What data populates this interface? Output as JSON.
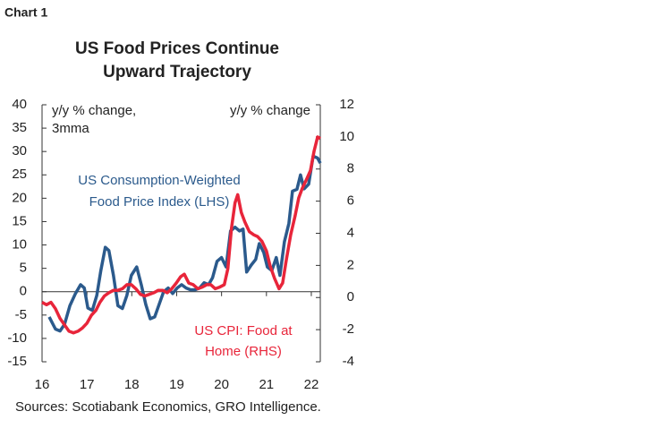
{
  "label": "Chart 1",
  "chart_data": {
    "type": "line",
    "title": [
      "US Food Prices Continue",
      "Upward Trajectory"
    ],
    "y_label": [
      "y/y % change,",
      "3mma"
    ],
    "y2_label": "y/y % change",
    "source": "Sources: Scotiabank Economics, GRO Intelligence.",
    "xlim": [
      16,
      22.2
    ],
    "xticks": [
      16,
      17,
      18,
      19,
      20,
      21,
      22
    ],
    "ylim": [
      -15,
      40
    ],
    "yticks": [
      40,
      35,
      30,
      25,
      20,
      15,
      10,
      5,
      0,
      -5,
      -10,
      -15
    ],
    "y2lim": [
      -4,
      12
    ],
    "y2ticks": [
      12,
      10,
      8,
      6,
      4,
      2,
      0,
      -2,
      -4
    ],
    "series": [
      {
        "name": [
          "US Consumption-Weighted",
          "Food Price Index (LHS)"
        ],
        "color": "#2b5a8c",
        "x": [
          16.16,
          16.3,
          16.4,
          16.5,
          16.62,
          16.74,
          16.86,
          16.94,
          17.02,
          17.12,
          17.22,
          17.31,
          17.41,
          17.49,
          17.59,
          17.69,
          17.79,
          17.89,
          17.99,
          18.11,
          18.21,
          18.31,
          18.41,
          18.51,
          18.61,
          18.71,
          18.81,
          18.91,
          19.01,
          19.11,
          19.21,
          19.31,
          19.41,
          19.51,
          19.61,
          19.71,
          19.8,
          19.9,
          20.0,
          20.1,
          20.2,
          20.3,
          20.4,
          20.48,
          20.56,
          20.66,
          20.76,
          20.84,
          20.94,
          21.02,
          21.12,
          21.22,
          21.3,
          21.4,
          21.5,
          21.58,
          21.68,
          21.76,
          21.84,
          21.94,
          22.04,
          22.14,
          22.2
        ],
        "values": [
          -5.4,
          -8,
          -8.4,
          -7,
          -3,
          -0.5,
          1.5,
          0.8,
          -3.5,
          -4,
          -0.8,
          4.5,
          9.5,
          8.8,
          3.5,
          -3,
          -3.6,
          -0.8,
          3.5,
          5.3,
          1.5,
          -2.7,
          -5.8,
          -5.4,
          -2.7,
          0,
          0.8,
          -0.4,
          0.8,
          1.5,
          0.8,
          0.4,
          0.4,
          0.8,
          1.9,
          1.5,
          3,
          6.5,
          7.3,
          5.3,
          13,
          13.8,
          13,
          13.4,
          4.2,
          5.7,
          6.9,
          10.3,
          8.4,
          5.3,
          4.5,
          7.3,
          3.5,
          10.7,
          14.6,
          21.5,
          21.9,
          25,
          22,
          23,
          29,
          28.6,
          27.5
        ]
      },
      {
        "name": [
          "US CPI: Food at",
          "Home (RHS)"
        ],
        "color": "#e8253a",
        "axis": "y2",
        "x": [
          16.0,
          16.1,
          16.2,
          16.3,
          16.4,
          16.5,
          16.6,
          16.7,
          16.8,
          16.9,
          17.0,
          17.1,
          17.2,
          17.29,
          17.39,
          17.49,
          17.59,
          17.69,
          17.79,
          17.89,
          17.99,
          18.09,
          18.19,
          18.29,
          18.39,
          18.49,
          18.59,
          18.69,
          18.79,
          18.89,
          18.99,
          19.09,
          19.17,
          19.27,
          19.37,
          19.47,
          19.57,
          19.67,
          19.76,
          19.86,
          19.96,
          20.06,
          20.14,
          20.22,
          20.3,
          20.36,
          20.44,
          20.52,
          20.62,
          20.72,
          20.8,
          20.9,
          21.0,
          21.08,
          21.18,
          21.28,
          21.36,
          21.44,
          21.54,
          21.64,
          21.72,
          21.8,
          21.9,
          21.98,
          22.06,
          22.14,
          22.2
        ],
        "values": [
          -0.3,
          -0.45,
          -0.3,
          -0.7,
          -1.3,
          -1.7,
          -2.1,
          -2.2,
          -2.1,
          -1.9,
          -1.6,
          -1.1,
          -0.8,
          -0.3,
          0.1,
          0.3,
          0.45,
          0.45,
          0.55,
          0.8,
          0.8,
          0.55,
          0.2,
          0.1,
          0.2,
          0.3,
          0.45,
          0.45,
          0.3,
          0.55,
          0.9,
          1.3,
          1.45,
          0.9,
          0.8,
          0.55,
          0.65,
          0.8,
          0.8,
          0.55,
          0.65,
          0.8,
          1.8,
          4.3,
          5.9,
          6.4,
          5.3,
          4.7,
          4.1,
          3.9,
          3.8,
          3.5,
          2.9,
          2.0,
          1.2,
          0.55,
          0.9,
          2.3,
          3.9,
          5.1,
          6.2,
          6.8,
          7.4,
          7.9,
          9.1,
          10.0,
          9.9
        ]
      }
    ]
  }
}
